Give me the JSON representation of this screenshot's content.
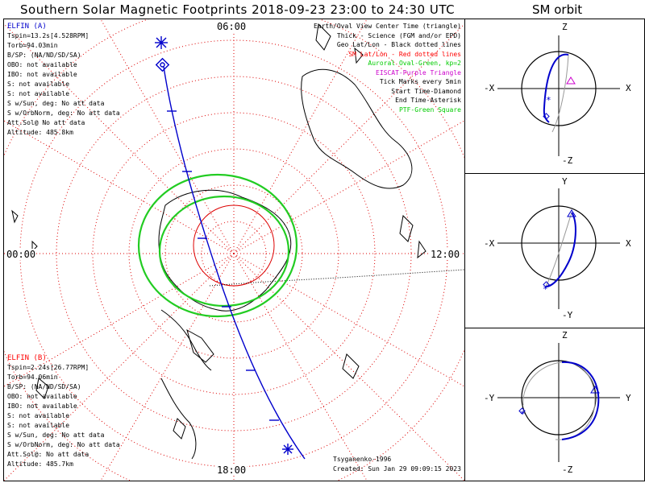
{
  "title": "Southern Solar Magnetic Footprints 2018-09-23 23:00 to 24:30 UTC",
  "orbit_title": "SM orbit",
  "clock_labels": {
    "top": "06:00",
    "left": "00:00",
    "right": "12:00",
    "bottom": "18:00"
  },
  "spacecraft_a": {
    "color": "#0000cc",
    "lines": [
      "ELFIN (A)",
      "Tspin=13.2s[4.528RPM]",
      "Torb=94.03min",
      "B/SP: (NA/ND/SD/SA)",
      "OBO: not available",
      "IBO: not available",
      "S: not available",
      "S: not available",
      "S w/Sun, deg: No att data",
      "S w/OrbNorm, deg: No att data",
      "Att.Sol@ No att data",
      "Altitude: 485.8km"
    ]
  },
  "spacecraft_b": {
    "color": "#ff0000",
    "lines": [
      "ELFIN (B)",
      "Tspin=2.24s[26.77RPM]",
      "Torb=94.06min",
      "B/SP: (NA/ND/SD/SA)",
      "OBO: not available",
      "IBO: not available",
      "S: not available",
      "S: not available",
      "S w/Sun, deg: No att data",
      "S w/OrbNorm, deg: No att data",
      "Att.Sol@: No att data",
      "Altitude: 485.7km"
    ]
  },
  "legend": [
    {
      "text": "Earth/Oval View Center Time (triangle)",
      "color": "#000000"
    },
    {
      "text": "Thick - Science (FGM and/or EPD)",
      "color": "#000000"
    },
    {
      "text": "Geo Lat/Lon - Black dotted lines",
      "color": "#000000"
    },
    {
      "text": "SM Lat/Lon - Red dotted lines",
      "color": "#ff0000"
    },
    {
      "text": "Auroral Oval-Green, kp=2",
      "color": "#00cc00"
    },
    {
      "text": "EISCAT-Purple Triangle",
      "color": "#cc00cc"
    },
    {
      "text": "Tick Marks every 5min",
      "color": "#000000"
    },
    {
      "text": "Start Time-Diamond",
      "color": "#000000"
    },
    {
      "text": "End Time-Asterisk",
      "color": "#000000"
    },
    {
      "text": "PTF-Green Square",
      "color": "#00cc00"
    }
  ],
  "footer": {
    "model": "Tsyganenko-1996",
    "created": "Created: Sun Jan 29 09:09:15 2023"
  },
  "orbit_panels": [
    {
      "top": "Z",
      "bottom": "-Z",
      "left": "-X",
      "right": "X"
    },
    {
      "top": "Y",
      "bottom": "-Y",
      "left": "-X",
      "right": "X"
    },
    {
      "top": "Z",
      "bottom": "-Z",
      "left": "-Y",
      "right": "Y"
    }
  ]
}
